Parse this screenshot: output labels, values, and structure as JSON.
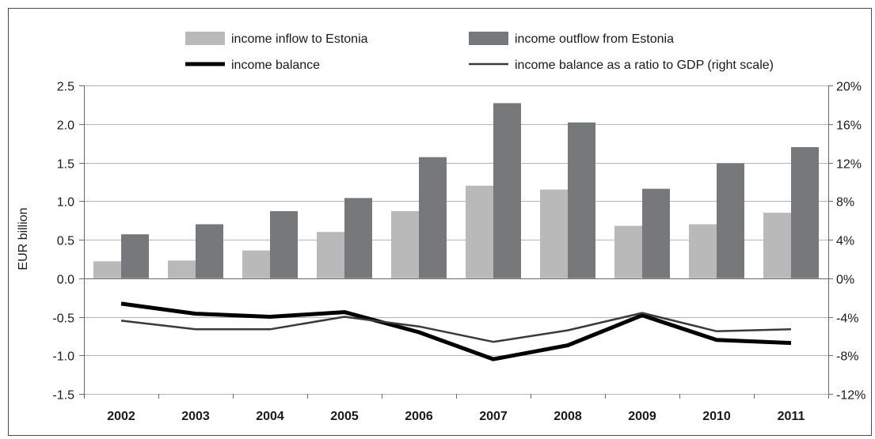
{
  "chart_data": {
    "type": "bar",
    "categories": [
      "2002",
      "2003",
      "2004",
      "2005",
      "2006",
      "2007",
      "2008",
      "2009",
      "2010",
      "2011"
    ],
    "ylabel": "EUR billion",
    "ylim": [
      -1.5,
      2.5
    ],
    "yticks": [
      "2.5",
      "2.0",
      "1.5",
      "1.0",
      "0.5",
      "0.0",
      "-0.5",
      "-1.0",
      "-1.5"
    ],
    "yticks_values": [
      2.5,
      2.0,
      1.5,
      1.0,
      0.5,
      0.0,
      -0.5,
      -1.0,
      -1.5
    ],
    "y2lim": [
      -12,
      20
    ],
    "y2ticks": [
      "20%",
      "16%",
      "12%",
      "8%",
      "4%",
      "0%",
      "-4%",
      "-8%",
      "-12%"
    ],
    "y2ticks_values": [
      20,
      16,
      12,
      8,
      4,
      0,
      -4,
      -8,
      -12
    ],
    "grid": true,
    "legend_position": "top",
    "series": [
      {
        "name": "income inflow to Estonia",
        "kind": "bar",
        "axis": "left",
        "color": "#b9b9b9",
        "values": [
          0.22,
          0.23,
          0.36,
          0.6,
          0.87,
          1.2,
          1.15,
          0.68,
          0.7,
          0.85
        ]
      },
      {
        "name": "income outflow from Estonia",
        "kind": "bar",
        "axis": "left",
        "color": "#77787a",
        "values": [
          0.57,
          0.7,
          0.87,
          1.04,
          1.57,
          2.27,
          2.02,
          1.16,
          1.49,
          1.7
        ]
      },
      {
        "name": "income balance",
        "kind": "line",
        "axis": "left",
        "color": "#000000",
        "values": [
          -0.33,
          -0.46,
          -0.5,
          -0.44,
          -0.7,
          -1.05,
          -0.87,
          -0.48,
          -0.8,
          -0.84
        ]
      },
      {
        "name": "income balance as a ratio to GDP (right scale)",
        "kind": "line",
        "axis": "right",
        "color": "#3a3a3a",
        "values": [
          -4.4,
          -5.3,
          -5.3,
          -4.0,
          -5.0,
          -6.6,
          -5.4,
          -3.6,
          -5.5,
          -5.3
        ]
      }
    ]
  }
}
